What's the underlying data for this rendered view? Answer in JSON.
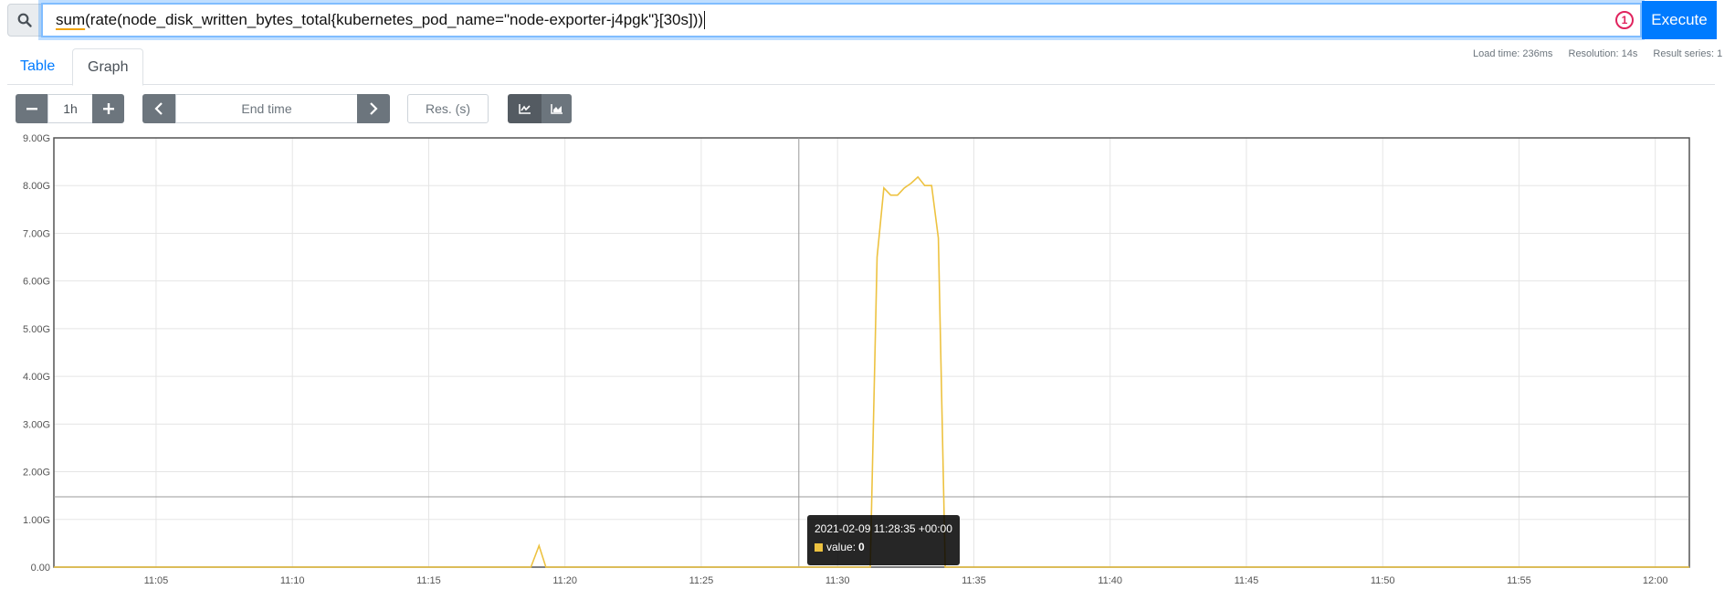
{
  "query": {
    "text_fn": "sum",
    "text_rest": "(rate(node_disk_written_bytes_total{kubernetes_pod_name=\"node-exporter-j4pgk\"}[30s]))",
    "error_count": "1",
    "execute_label": "Execute"
  },
  "tabs": [
    {
      "label": "Table"
    },
    {
      "label": "Graph"
    }
  ],
  "stats": {
    "load_time": "Load time: 236ms",
    "resolution": "Resolution: 14s",
    "result_series": "Result series: 1"
  },
  "controls": {
    "range": "1h",
    "end_time_placeholder": "End time",
    "res_placeholder": "Res. (s)"
  },
  "tooltip": {
    "time": "2021-02-09 11:28:35 +00:00",
    "label": "value:",
    "value": "0"
  },
  "chart_data": {
    "type": "line",
    "series_color": "#edc240",
    "ylim": [
      0,
      9
    ],
    "y_ticks": [
      "0.00",
      "1.00G",
      "2.00G",
      "3.00G",
      "4.00G",
      "5.00G",
      "6.00G",
      "7.00G",
      "8.00G",
      "9.00G"
    ],
    "x_ticks": [
      "11:05",
      "11:10",
      "11:15",
      "11:20",
      "11:25",
      "11:30",
      "11:35",
      "11:40",
      "11:45",
      "11:50",
      "11:55",
      "12:00"
    ],
    "x_tick_minutes": [
      5,
      10,
      15,
      20,
      25,
      30,
      35,
      40,
      45,
      50,
      55,
      60
    ],
    "xlim_minutes": [
      1.25,
      61.25
    ],
    "hover_minute": 28.58,
    "grid": true,
    "points": [
      [
        1.25,
        0
      ],
      [
        18.75,
        0
      ],
      [
        19.05,
        0.45
      ],
      [
        19.3,
        0
      ],
      [
        31.2,
        0
      ],
      [
        31.45,
        6.5
      ],
      [
        31.7,
        7.95
      ],
      [
        31.95,
        7.8
      ],
      [
        32.2,
        7.8
      ],
      [
        32.45,
        7.95
      ],
      [
        32.7,
        8.05
      ],
      [
        32.95,
        8.18
      ],
      [
        33.2,
        8.0
      ],
      [
        33.45,
        8.0
      ],
      [
        33.7,
        6.9
      ],
      [
        33.95,
        0
      ],
      [
        61.25,
        0
      ]
    ]
  }
}
